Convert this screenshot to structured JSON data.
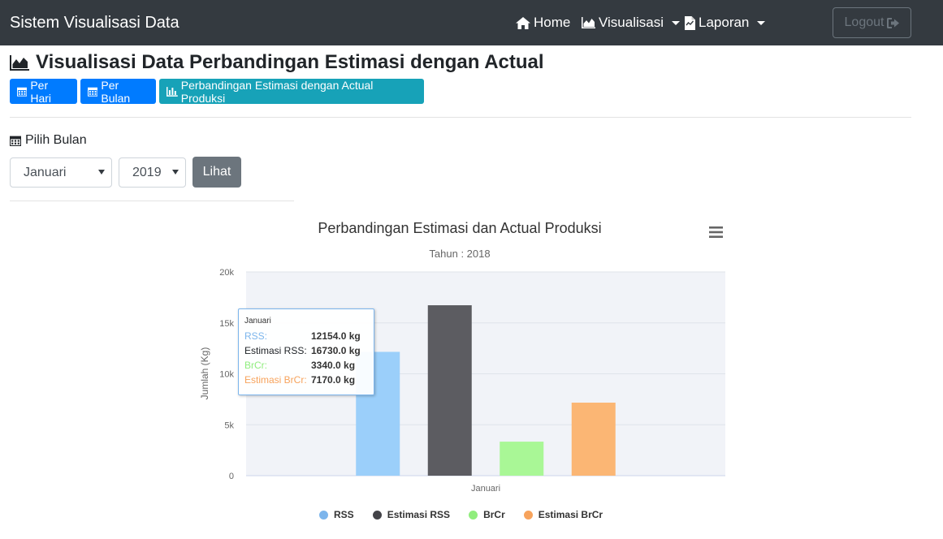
{
  "navbar": {
    "brand": "Sistem Visualisasi Data",
    "home": "Home",
    "visualisasi": "Visualisasi",
    "laporan": "Laporan",
    "logout": "Logout"
  },
  "page": {
    "title": "Visualisasi Data Perbandingan Estimasi dengan Actual",
    "buttons": {
      "per_hari": "Per Hari",
      "per_bulan": "Per Bulan",
      "perbandingan": "Perbandingan Estimasi dengan Actual Produksi"
    }
  },
  "filter": {
    "label": "Pilih Bulan",
    "month": "Januari",
    "year": "2019",
    "submit": "Lihat"
  },
  "tooltip": {
    "header": "Januari",
    "rows": [
      {
        "name": "RSS:",
        "value": "12154.0 kg",
        "color": "#7cb5ec"
      },
      {
        "name": "Estimasi RSS:",
        "value": "16730.0 kg",
        "color": "#434348"
      },
      {
        "name": "BrCr:",
        "value": "3340.0 kg",
        "color": "#90ed7d"
      },
      {
        "name": "Estimasi BrCr:",
        "value": "7170.0 kg",
        "color": "#f7a35c"
      }
    ]
  },
  "chart_data": {
    "type": "bar",
    "title": "Perbandingan Estimasi dan Actual Produksi",
    "subtitle": "Tahun : 2018",
    "ylabel": "Jumlah (Kg)",
    "xlabel": "",
    "categories": [
      "Januari"
    ],
    "ylim": [
      0,
      20000
    ],
    "yticks": [
      0,
      5000,
      10000,
      15000,
      20000
    ],
    "ytick_labels": [
      "0",
      "5k",
      "10k",
      "15k",
      "20k"
    ],
    "grid": true,
    "legend_placement": "bottom-center",
    "series": [
      {
        "name": "RSS",
        "values": [
          12154
        ],
        "color": "#9bcffa"
      },
      {
        "name": "Estimasi RSS",
        "values": [
          16730
        ],
        "color": "#5c5c61"
      },
      {
        "name": "BrCr",
        "values": [
          3340
        ],
        "color": "#a9f796"
      },
      {
        "name": "Estimasi BrCr",
        "values": [
          7170
        ],
        "color": "#fbb674"
      }
    ],
    "legend_colors": [
      "#7cb5ec",
      "#434348",
      "#90ed7d",
      "#f7a35c"
    ]
  }
}
